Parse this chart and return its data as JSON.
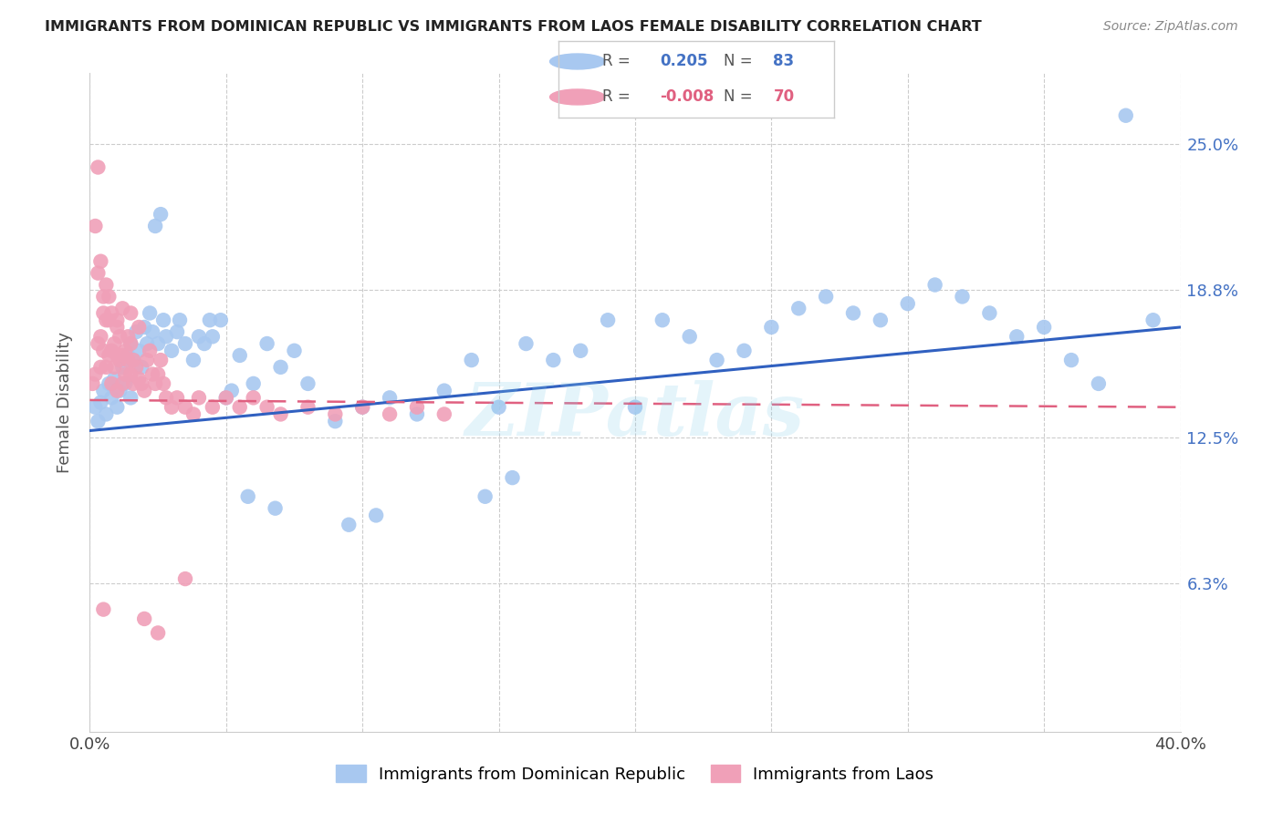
{
  "title": "IMMIGRANTS FROM DOMINICAN REPUBLIC VS IMMIGRANTS FROM LAOS FEMALE DISABILITY CORRELATION CHART",
  "source": "Source: ZipAtlas.com",
  "ylabel": "Female Disability",
  "label_blue": "Immigrants from Dominican Republic",
  "label_pink": "Immigrants from Laos",
  "blue_color": "#A8C8F0",
  "pink_color": "#F0A0B8",
  "blue_line_color": "#3060C0",
  "pink_line_color": "#E06080",
  "watermark": "ZIPatlas",
  "xlim": [
    0.0,
    0.4
  ],
  "ylim": [
    0.0,
    0.28
  ],
  "ytick_vals": [
    0.063,
    0.125,
    0.188,
    0.25
  ],
  "ytick_labels": [
    "6.3%",
    "12.5%",
    "18.8%",
    "25.0%"
  ],
  "blue_trend_x": [
    0.0,
    0.4
  ],
  "blue_trend_y": [
    0.128,
    0.172
  ],
  "pink_trend_x": [
    0.0,
    0.4
  ],
  "pink_trend_y": [
    0.141,
    0.138
  ],
  "legend_r_blue": "0.205",
  "legend_n_blue": "83",
  "legend_r_pink": "-0.008",
  "legend_n_pink": "70",
  "blue_x": [
    0.002,
    0.003,
    0.004,
    0.005,
    0.006,
    0.007,
    0.008,
    0.009,
    0.01,
    0.011,
    0.012,
    0.013,
    0.014,
    0.015,
    0.015,
    0.016,
    0.017,
    0.018,
    0.019,
    0.02,
    0.021,
    0.022,
    0.023,
    0.025,
    0.027,
    0.028,
    0.03,
    0.032,
    0.035,
    0.038,
    0.042,
    0.045,
    0.048,
    0.05,
    0.055,
    0.06,
    0.065,
    0.07,
    0.075,
    0.08,
    0.09,
    0.1,
    0.11,
    0.12,
    0.13,
    0.14,
    0.15,
    0.16,
    0.17,
    0.18,
    0.19,
    0.2,
    0.21,
    0.22,
    0.23,
    0.24,
    0.25,
    0.26,
    0.27,
    0.28,
    0.29,
    0.3,
    0.31,
    0.32,
    0.33,
    0.34,
    0.35,
    0.36,
    0.37,
    0.38,
    0.024,
    0.026,
    0.033,
    0.04,
    0.044,
    0.052,
    0.058,
    0.068,
    0.095,
    0.105,
    0.145,
    0.155,
    0.39
  ],
  "blue_y": [
    0.138,
    0.132,
    0.14,
    0.145,
    0.135,
    0.148,
    0.142,
    0.15,
    0.138,
    0.145,
    0.155,
    0.148,
    0.16,
    0.165,
    0.142,
    0.158,
    0.17,
    0.162,
    0.155,
    0.172,
    0.165,
    0.178,
    0.17,
    0.165,
    0.175,
    0.168,
    0.162,
    0.17,
    0.165,
    0.158,
    0.165,
    0.168,
    0.175,
    0.142,
    0.16,
    0.148,
    0.165,
    0.155,
    0.162,
    0.148,
    0.132,
    0.138,
    0.142,
    0.135,
    0.145,
    0.158,
    0.138,
    0.165,
    0.158,
    0.162,
    0.175,
    0.138,
    0.175,
    0.168,
    0.158,
    0.162,
    0.172,
    0.18,
    0.185,
    0.178,
    0.175,
    0.182,
    0.19,
    0.185,
    0.178,
    0.168,
    0.172,
    0.158,
    0.148,
    0.262,
    0.215,
    0.22,
    0.175,
    0.168,
    0.175,
    0.145,
    0.1,
    0.095,
    0.088,
    0.092,
    0.1,
    0.108,
    0.175
  ],
  "pink_x": [
    0.001,
    0.002,
    0.003,
    0.004,
    0.004,
    0.005,
    0.005,
    0.006,
    0.006,
    0.007,
    0.007,
    0.008,
    0.008,
    0.009,
    0.009,
    0.01,
    0.01,
    0.01,
    0.011,
    0.011,
    0.012,
    0.012,
    0.013,
    0.013,
    0.014,
    0.014,
    0.015,
    0.015,
    0.016,
    0.016,
    0.017,
    0.018,
    0.019,
    0.02,
    0.021,
    0.022,
    0.023,
    0.024,
    0.025,
    0.026,
    0.027,
    0.028,
    0.03,
    0.032,
    0.035,
    0.038,
    0.04,
    0.045,
    0.05,
    0.055,
    0.06,
    0.065,
    0.07,
    0.08,
    0.09,
    0.1,
    0.11,
    0.12,
    0.13,
    0.002,
    0.003,
    0.004,
    0.005,
    0.006,
    0.007,
    0.008,
    0.01,
    0.012,
    0.015,
    0.018
  ],
  "pink_y": [
    0.148,
    0.152,
    0.165,
    0.168,
    0.155,
    0.162,
    0.178,
    0.155,
    0.175,
    0.16,
    0.175,
    0.162,
    0.148,
    0.165,
    0.155,
    0.16,
    0.172,
    0.145,
    0.158,
    0.168,
    0.16,
    0.148,
    0.162,
    0.152,
    0.158,
    0.168,
    0.152,
    0.165,
    0.148,
    0.158,
    0.155,
    0.15,
    0.148,
    0.145,
    0.158,
    0.162,
    0.152,
    0.148,
    0.152,
    0.158,
    0.148,
    0.142,
    0.138,
    0.142,
    0.138,
    0.135,
    0.142,
    0.138,
    0.142,
    0.138,
    0.142,
    0.138,
    0.135,
    0.138,
    0.135,
    0.138,
    0.135,
    0.138,
    0.135,
    0.215,
    0.195,
    0.2,
    0.185,
    0.19,
    0.185,
    0.178,
    0.175,
    0.18,
    0.178,
    0.172
  ]
}
